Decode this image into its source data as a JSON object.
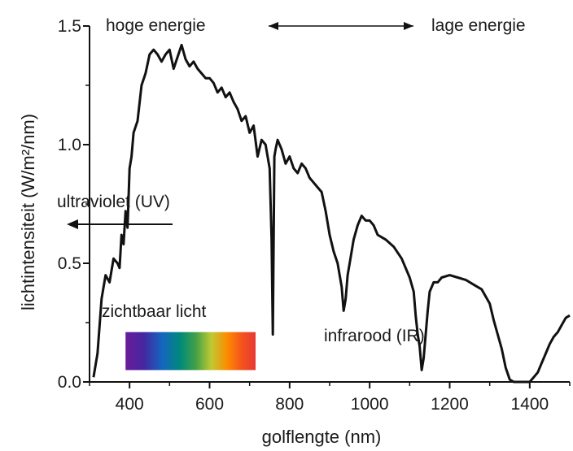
{
  "chart_data": {
    "type": "line",
    "title": "",
    "xlabel": "golflengte (nm)",
    "ylabel": "lichtintensiteit (W/m²/nm)",
    "xlim": [
      300,
      1500
    ],
    "ylim": [
      0,
      1.5
    ],
    "xticks": [
      400,
      600,
      800,
      1000,
      1200,
      1400
    ],
    "xtick_labels": [
      "400",
      "600",
      "800",
      "1000",
      "1200",
      "1400"
    ],
    "yticks": [
      0,
      0.5,
      1.0,
      1.5
    ],
    "ytick_labels": [
      "0.0",
      "0.5",
      "1.0",
      "1.5"
    ],
    "series": [
      {
        "color": "#111111",
        "x": [
          310,
          320,
          330,
          340,
          350,
          360,
          370,
          375,
          380,
          385,
          390,
          395,
          400,
          405,
          410,
          420,
          430,
          440,
          450,
          460,
          470,
          480,
          490,
          500,
          510,
          520,
          530,
          540,
          550,
          560,
          570,
          580,
          590,
          600,
          610,
          620,
          630,
          640,
          650,
          660,
          670,
          680,
          690,
          700,
          710,
          720,
          730,
          740,
          750,
          755,
          758,
          760,
          762,
          765,
          770,
          780,
          790,
          800,
          810,
          820,
          830,
          840,
          850,
          860,
          870,
          880,
          890,
          900,
          910,
          920,
          930,
          935,
          940,
          945,
          950,
          960,
          970,
          980,
          990,
          1000,
          1010,
          1020,
          1040,
          1060,
          1080,
          1090,
          1100,
          1110,
          1115,
          1120,
          1125,
          1130,
          1135,
          1140,
          1145,
          1150,
          1160,
          1170,
          1180,
          1200,
          1220,
          1240,
          1260,
          1280,
          1300,
          1310,
          1320,
          1330,
          1340,
          1350,
          1360,
          1370,
          1380,
          1390,
          1400,
          1410,
          1420,
          1430,
          1440,
          1450,
          1460,
          1470,
          1480,
          1490,
          1500
        ],
        "y": [
          0.02,
          0.12,
          0.35,
          0.45,
          0.42,
          0.52,
          0.5,
          0.48,
          0.62,
          0.58,
          0.72,
          0.65,
          0.9,
          0.95,
          1.05,
          1.1,
          1.25,
          1.3,
          1.38,
          1.4,
          1.38,
          1.35,
          1.38,
          1.4,
          1.32,
          1.37,
          1.42,
          1.36,
          1.33,
          1.35,
          1.32,
          1.3,
          1.28,
          1.28,
          1.26,
          1.22,
          1.24,
          1.2,
          1.22,
          1.18,
          1.15,
          1.1,
          1.12,
          1.05,
          1.08,
          0.95,
          1.02,
          1.0,
          0.9,
          0.6,
          0.2,
          0.6,
          0.95,
          0.98,
          1.02,
          0.98,
          0.92,
          0.95,
          0.9,
          0.88,
          0.92,
          0.9,
          0.86,
          0.84,
          0.82,
          0.8,
          0.72,
          0.62,
          0.55,
          0.5,
          0.4,
          0.3,
          0.35,
          0.45,
          0.5,
          0.6,
          0.66,
          0.7,
          0.68,
          0.68,
          0.66,
          0.62,
          0.6,
          0.57,
          0.52,
          0.48,
          0.44,
          0.38,
          0.28,
          0.2,
          0.15,
          0.05,
          0.1,
          0.2,
          0.3,
          0.38,
          0.42,
          0.42,
          0.44,
          0.45,
          0.44,
          0.43,
          0.41,
          0.39,
          0.33,
          0.26,
          0.2,
          0.14,
          0.06,
          0.01,
          0.0,
          0.0,
          0.0,
          0.0,
          0.0,
          0.02,
          0.04,
          0.08,
          0.12,
          0.16,
          0.19,
          0.21,
          0.24,
          0.27,
          0.28
        ]
      }
    ],
    "annotations": {
      "top_left": "hoge energie",
      "top_right": "lage energie",
      "uv": "ultraviolet (UV)",
      "visible": "zichtbaar licht",
      "ir": "infrarood (IR)"
    },
    "visible_band_range_nm": [
      400,
      715
    ],
    "grid": false,
    "legend": "none"
  }
}
